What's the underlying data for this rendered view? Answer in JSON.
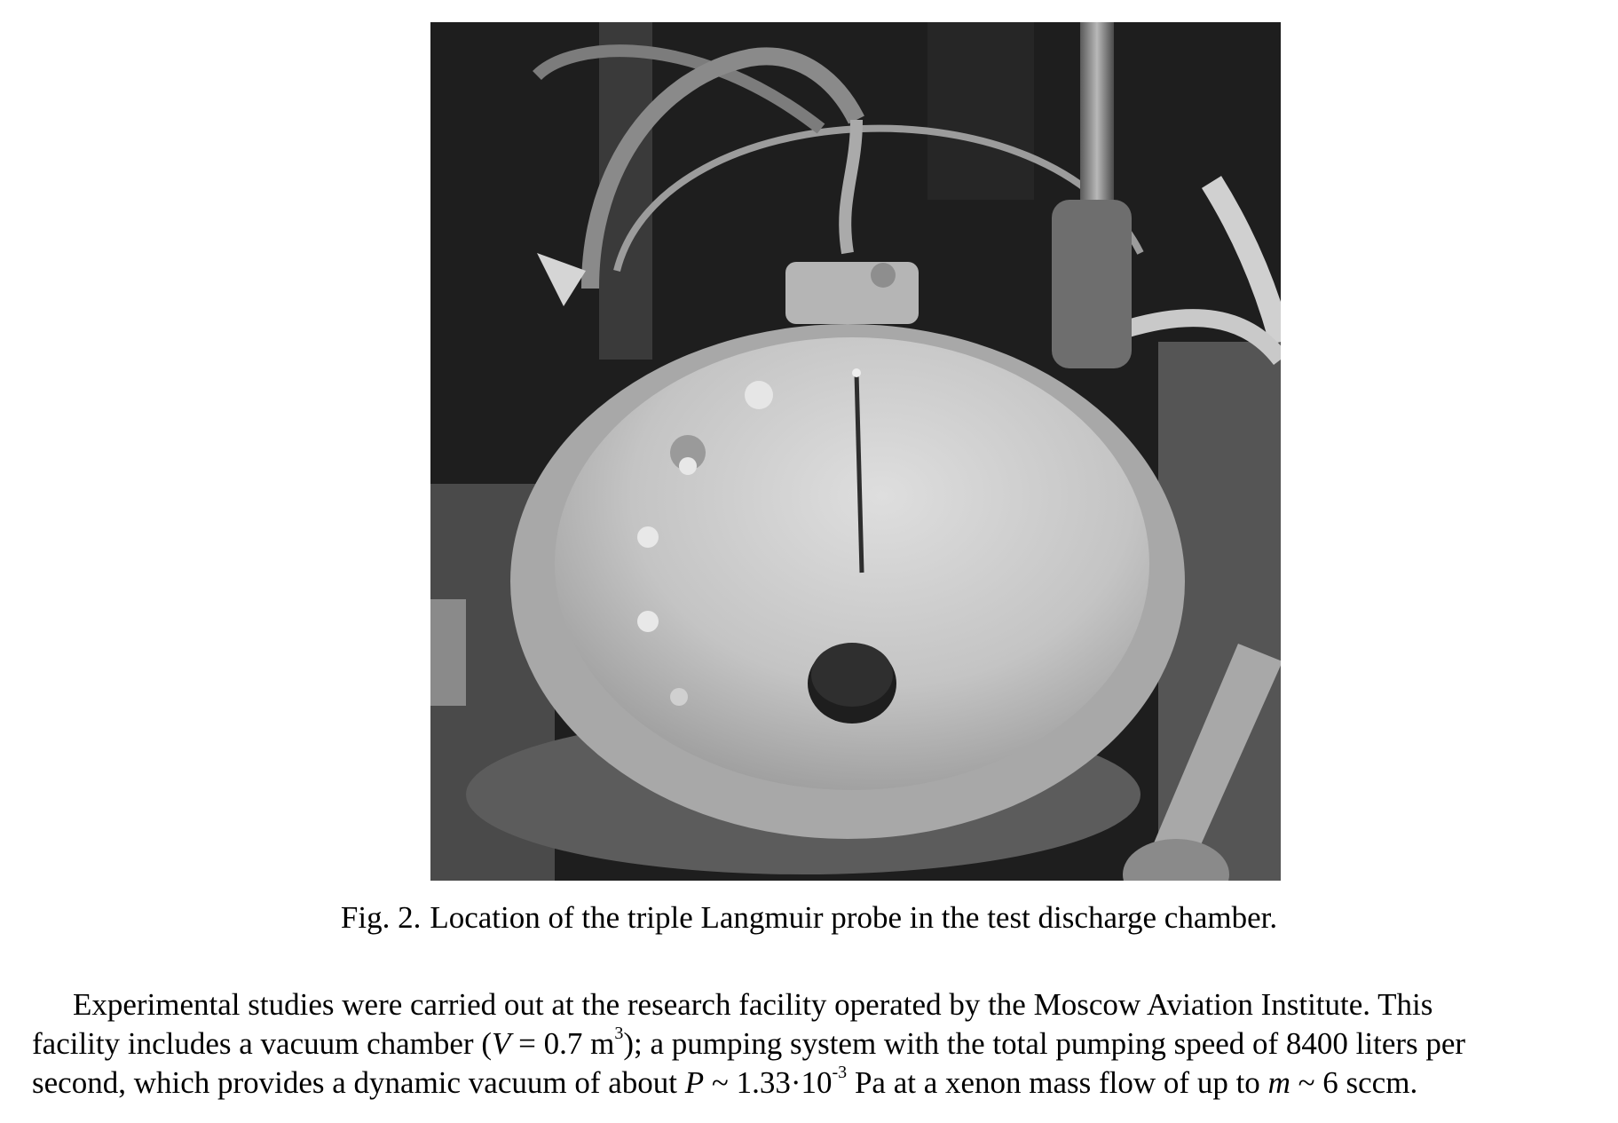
{
  "figure": {
    "label": "Fig. 2.",
    "caption": "Location of the triple Langmuir probe in the test discharge chamber."
  },
  "paragraph": {
    "l1_a": "Experimental studies were carried out at the research facility operated by the Moscow Aviation Institute. This",
    "l2_a": "facility includes a vacuum chamber (",
    "l2_var": "V",
    "l2_b": " = 0.7 m",
    "l2_sup": "3",
    "l2_c": "); a pumping system with the total pumping speed of 8400 liters per",
    "l3_a": "second, which provides a dynamic vacuum of about ",
    "l3_var": "P",
    "l3_b": " ~ 1.33·10",
    "l3_sup": "-3",
    "l3_c": " Pa at a xenon mass flow of up to ",
    "l3_var2": "m",
    "l3_d": " ~ 6 sccm."
  },
  "colors": {
    "page_bg": "#ffffff",
    "photo_bg": "#1b1b1b",
    "dish": "#c9c9c9",
    "dish_rim": "#b3b3b3"
  }
}
